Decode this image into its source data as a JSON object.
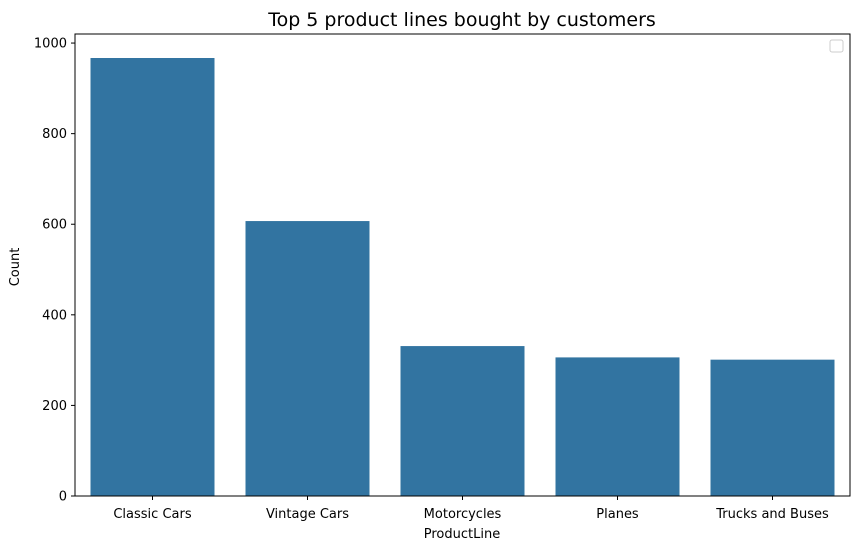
{
  "chart_data": {
    "type": "bar",
    "title": "Top 5 product lines bought by customers",
    "xlabel": "ProductLine",
    "ylabel": "Count",
    "categories": [
      "Classic Cars",
      "Vintage Cars",
      "Motorcycles",
      "Planes",
      "Trucks and Buses"
    ],
    "values": [
      967,
      607,
      331,
      306,
      301
    ],
    "ylim": [
      0,
      1020
    ],
    "yticks": [
      0,
      200,
      400,
      600,
      800,
      1000
    ],
    "bar_color": "#3274a1",
    "legend": "top-right, empty",
    "grid": false
  }
}
